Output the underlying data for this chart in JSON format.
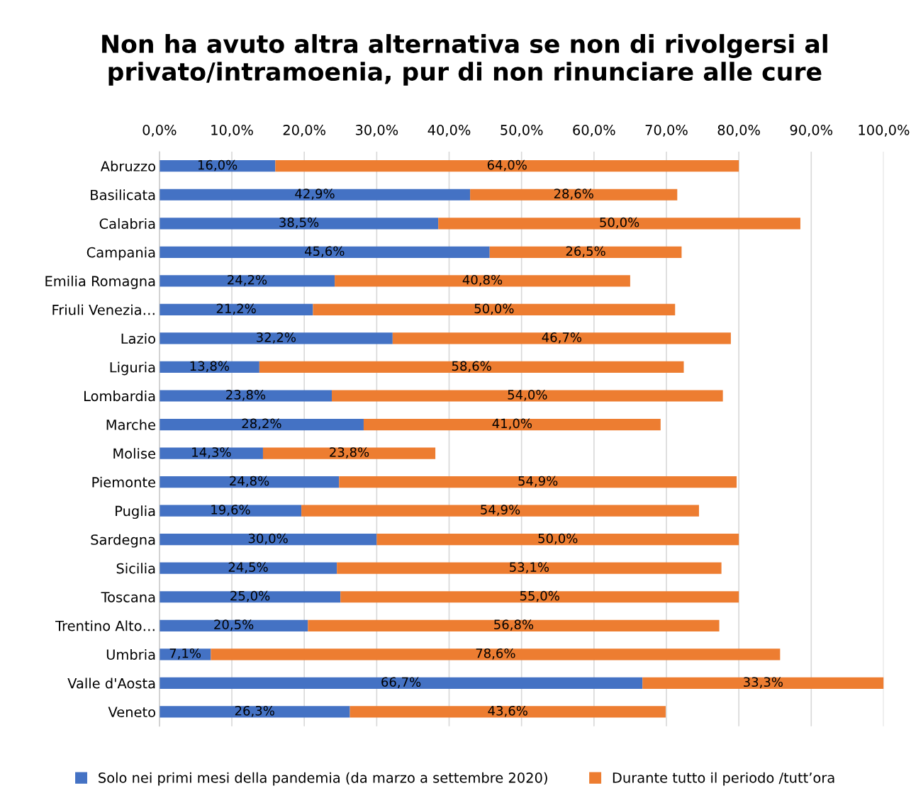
{
  "chart_data": {
    "type": "bar",
    "orientation": "horizontal",
    "stacked": true,
    "title": "Non ha avuto altra alternativa se non di rivolgersi al privato/intramoenia, pur di non rinunciare alle cure",
    "categories": [
      "Abruzzo",
      "Basilicata",
      "Calabria",
      "Campania",
      "Emilia Romagna",
      "Friuli Venezia…",
      "Lazio",
      "Liguria",
      "Lombardia",
      "Marche",
      "Molise",
      "Piemonte",
      "Puglia",
      "Sardegna",
      "Sicilia",
      "Toscana",
      "Trentino Alto…",
      "Umbria",
      "Valle d'Aosta",
      "Veneto"
    ],
    "series": [
      {
        "name": "Solo nei primi mesi della pandemia (da marzo a settembre 2020)",
        "color": "#4472c4",
        "values": [
          16.0,
          42.9,
          38.5,
          45.6,
          24.2,
          21.2,
          32.2,
          13.8,
          23.8,
          28.2,
          14.3,
          24.8,
          19.6,
          30.0,
          24.5,
          25.0,
          20.5,
          7.1,
          66.7,
          26.3
        ],
        "value_labels": [
          "16,0%",
          "42,9%",
          "38,5%",
          "45,6%",
          "24,2%",
          "21,2%",
          "32,2%",
          "13,8%",
          "23,8%",
          "28,2%",
          "14,3%",
          "24,8%",
          "19,6%",
          "30,0%",
          "24,5%",
          "25,0%",
          "20,5%",
          "7,1%",
          "66,7%",
          "26,3%"
        ]
      },
      {
        "name": "Durante tutto il periodo /tutt’ora",
        "color": "#ed7d31",
        "values": [
          64.0,
          28.6,
          50.0,
          26.5,
          40.8,
          50.0,
          46.7,
          58.6,
          54.0,
          41.0,
          23.8,
          54.9,
          54.9,
          50.0,
          53.1,
          55.0,
          56.8,
          78.6,
          33.3,
          43.6
        ],
        "value_labels": [
          "64,0%",
          "28,6%",
          "50,0%",
          "26,5%",
          "40,8%",
          "50,0%",
          "46,7%",
          "58,6%",
          "54,0%",
          "41,0%",
          "23,8%",
          "54,9%",
          "54,9%",
          "50,0%",
          "53,1%",
          "55,0%",
          "56,8%",
          "78,6%",
          "33,3%",
          "43,6%"
        ]
      }
    ],
    "xlim": [
      0,
      100
    ],
    "xticks": [
      {
        "value": 0,
        "label": "0,0%"
      },
      {
        "value": 10,
        "label": "10,0%"
      },
      {
        "value": 20,
        "label": "20,0%"
      },
      {
        "value": 30,
        "label": "30,0%"
      },
      {
        "value": 40,
        "label": "40,0%"
      },
      {
        "value": 50,
        "label": "50,0%"
      },
      {
        "value": 60,
        "label": "60,0%"
      },
      {
        "value": 70,
        "label": "70,0%"
      },
      {
        "value": 80,
        "label": "80,0%"
      },
      {
        "value": 90,
        "label": "90,0%"
      },
      {
        "value": 100,
        "label": "100,0%"
      }
    ],
    "grid": "x",
    "legend": "bottom"
  }
}
